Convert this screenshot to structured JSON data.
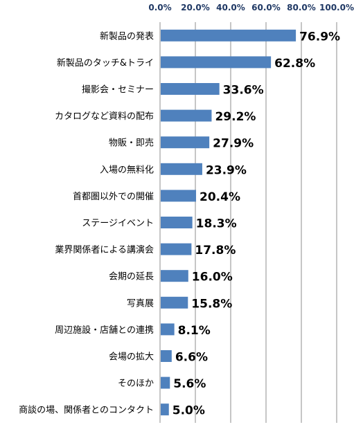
{
  "chart_data": {
    "type": "bar",
    "orientation": "horizontal",
    "categories": [
      "新製品の発表",
      "新製品のタッチ&トライ",
      "撮影会・セミナー",
      "カタログなど資料の配布",
      "物販・即売",
      "入場の無料化",
      "首都圏以外での開催",
      "ステージイベント",
      "業界関係者による講演会",
      "会期の延長",
      "写真展",
      "周辺施設・店舗との連携",
      "会場の拡大",
      "そのほか",
      "商談の場、関係者とのコンタクト"
    ],
    "values": [
      76.9,
      62.8,
      33.6,
      29.2,
      27.9,
      23.9,
      20.4,
      18.3,
      17.8,
      16.0,
      15.8,
      8.1,
      6.6,
      5.6,
      5.0
    ],
    "value_labels": [
      "76.9%",
      "62.8%",
      "33.6%",
      "29.2%",
      "27.9%",
      "23.9%",
      "20.4%",
      "18.3%",
      "17.8%",
      "16.0%",
      "15.8%",
      "8.1%",
      "6.6%",
      "5.6%",
      "5.0%"
    ],
    "xlim": [
      0,
      100
    ],
    "ticks": [
      0,
      20,
      40,
      60,
      80,
      100
    ],
    "tick_labels": [
      "0.0%",
      "20.0%",
      "40.0%",
      "60.0%",
      "80.0%",
      "100.0%"
    ],
    "axis_position": "top",
    "grid": true,
    "bar_color": "#4f81bd",
    "title": "",
    "xlabel": "",
    "ylabel": ""
  }
}
